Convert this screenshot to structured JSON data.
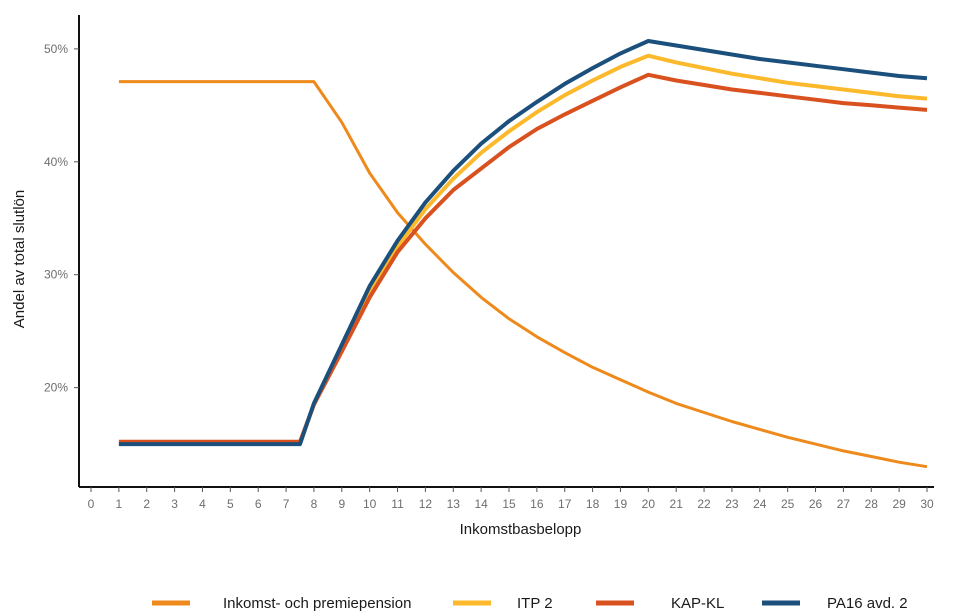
{
  "chart_data": {
    "type": "line",
    "xlabel": "Inkomstbasbelopp",
    "ylabel": "Andel av total slutlön",
    "xlim": [
      0,
      30
    ],
    "ylim": [
      11.2,
      53
    ],
    "x_ticks": [
      "0",
      "1",
      "2",
      "3",
      "4",
      "5",
      "6",
      "7",
      "8",
      "9",
      "10",
      "11",
      "12",
      "13",
      "14",
      "15",
      "16",
      "17",
      "18",
      "19",
      "20",
      "21",
      "22",
      "23",
      "24",
      "25",
      "26",
      "27",
      "28",
      "29",
      "30"
    ],
    "y_ticks": [
      {
        "value": 20,
        "label": "20%"
      },
      {
        "value": 30,
        "label": "30%"
      },
      {
        "value": 40,
        "label": "40%"
      },
      {
        "value": 50,
        "label": "50%"
      }
    ],
    "grid": false,
    "legend_position": "bottom",
    "series": [
      {
        "name": "Inkomst- och premiepension",
        "color": "#ee8a1c",
        "stroke": 3,
        "points": [
          [
            1,
            47.1
          ],
          [
            7.5,
            47.1
          ],
          [
            8,
            47.1
          ],
          [
            9,
            43.5
          ],
          [
            10,
            39
          ],
          [
            11,
            35.5
          ],
          [
            12,
            32.7
          ],
          [
            13,
            30.2
          ],
          [
            14,
            28
          ],
          [
            15,
            26.1
          ],
          [
            16,
            24.5
          ],
          [
            17,
            23.1
          ],
          [
            18,
            21.8
          ],
          [
            19,
            20.7
          ],
          [
            20,
            19.6
          ],
          [
            21,
            18.6
          ],
          [
            22,
            17.8
          ],
          [
            23,
            17
          ],
          [
            24,
            16.3
          ],
          [
            25,
            15.6
          ],
          [
            26,
            15
          ],
          [
            27,
            14.4
          ],
          [
            28,
            13.9
          ],
          [
            29,
            13.4
          ],
          [
            30,
            13
          ]
        ]
      },
      {
        "name": "ITP 2",
        "color": "#fbb92b",
        "stroke": 4,
        "points": [
          [
            1,
            15.1
          ],
          [
            7.5,
            15.1
          ],
          [
            8,
            18.5
          ],
          [
            9,
            23.5
          ],
          [
            10,
            28.5
          ],
          [
            11,
            32.5
          ],
          [
            12,
            35.8
          ],
          [
            13,
            38.5
          ],
          [
            14,
            40.8
          ],
          [
            15,
            42.7
          ],
          [
            16,
            44.4
          ],
          [
            17,
            45.9
          ],
          [
            18,
            47.2
          ],
          [
            19,
            48.4
          ],
          [
            20,
            49.4
          ],
          [
            21,
            48.8
          ],
          [
            22,
            48.3
          ],
          [
            23,
            47.8
          ],
          [
            24,
            47.4
          ],
          [
            25,
            47
          ],
          [
            26,
            46.7
          ],
          [
            27,
            46.4
          ],
          [
            28,
            46.1
          ],
          [
            29,
            45.8
          ],
          [
            30,
            45.6
          ]
        ]
      },
      {
        "name": "KAP-KL",
        "color": "#d9511f",
        "stroke": 4,
        "points": [
          [
            1,
            15.2
          ],
          [
            7.5,
            15.2
          ],
          [
            8,
            18.5
          ],
          [
            9,
            23.2
          ],
          [
            10,
            28
          ],
          [
            11,
            32
          ],
          [
            12,
            35
          ],
          [
            13,
            37.5
          ],
          [
            14,
            39.4
          ],
          [
            15,
            41.3
          ],
          [
            16,
            42.9
          ],
          [
            17,
            44.2
          ],
          [
            18,
            45.4
          ],
          [
            19,
            46.6
          ],
          [
            20,
            47.7
          ],
          [
            21,
            47.2
          ],
          [
            22,
            46.8
          ],
          [
            23,
            46.4
          ],
          [
            24,
            46.1
          ],
          [
            25,
            45.8
          ],
          [
            26,
            45.5
          ],
          [
            27,
            45.2
          ],
          [
            28,
            45
          ],
          [
            29,
            44.8
          ],
          [
            30,
            44.6
          ]
        ]
      },
      {
        "name": "PA16 avd. 2",
        "color": "#1b4f7c",
        "stroke": 4,
        "points": [
          [
            1,
            15
          ],
          [
            7.5,
            15
          ],
          [
            8,
            18.6
          ],
          [
            9,
            23.8
          ],
          [
            10,
            29
          ],
          [
            11,
            33
          ],
          [
            12,
            36.4
          ],
          [
            13,
            39.2
          ],
          [
            14,
            41.6
          ],
          [
            15,
            43.6
          ],
          [
            16,
            45.3
          ],
          [
            17,
            46.9
          ],
          [
            18,
            48.3
          ],
          [
            19,
            49.6
          ],
          [
            20,
            50.7
          ],
          [
            21,
            50.3
          ],
          [
            22,
            49.9
          ],
          [
            23,
            49.5
          ],
          [
            24,
            49.1
          ],
          [
            25,
            48.8
          ],
          [
            26,
            48.5
          ],
          [
            27,
            48.2
          ],
          [
            28,
            47.9
          ],
          [
            29,
            47.6
          ],
          [
            30,
            47.4
          ]
        ]
      }
    ]
  }
}
